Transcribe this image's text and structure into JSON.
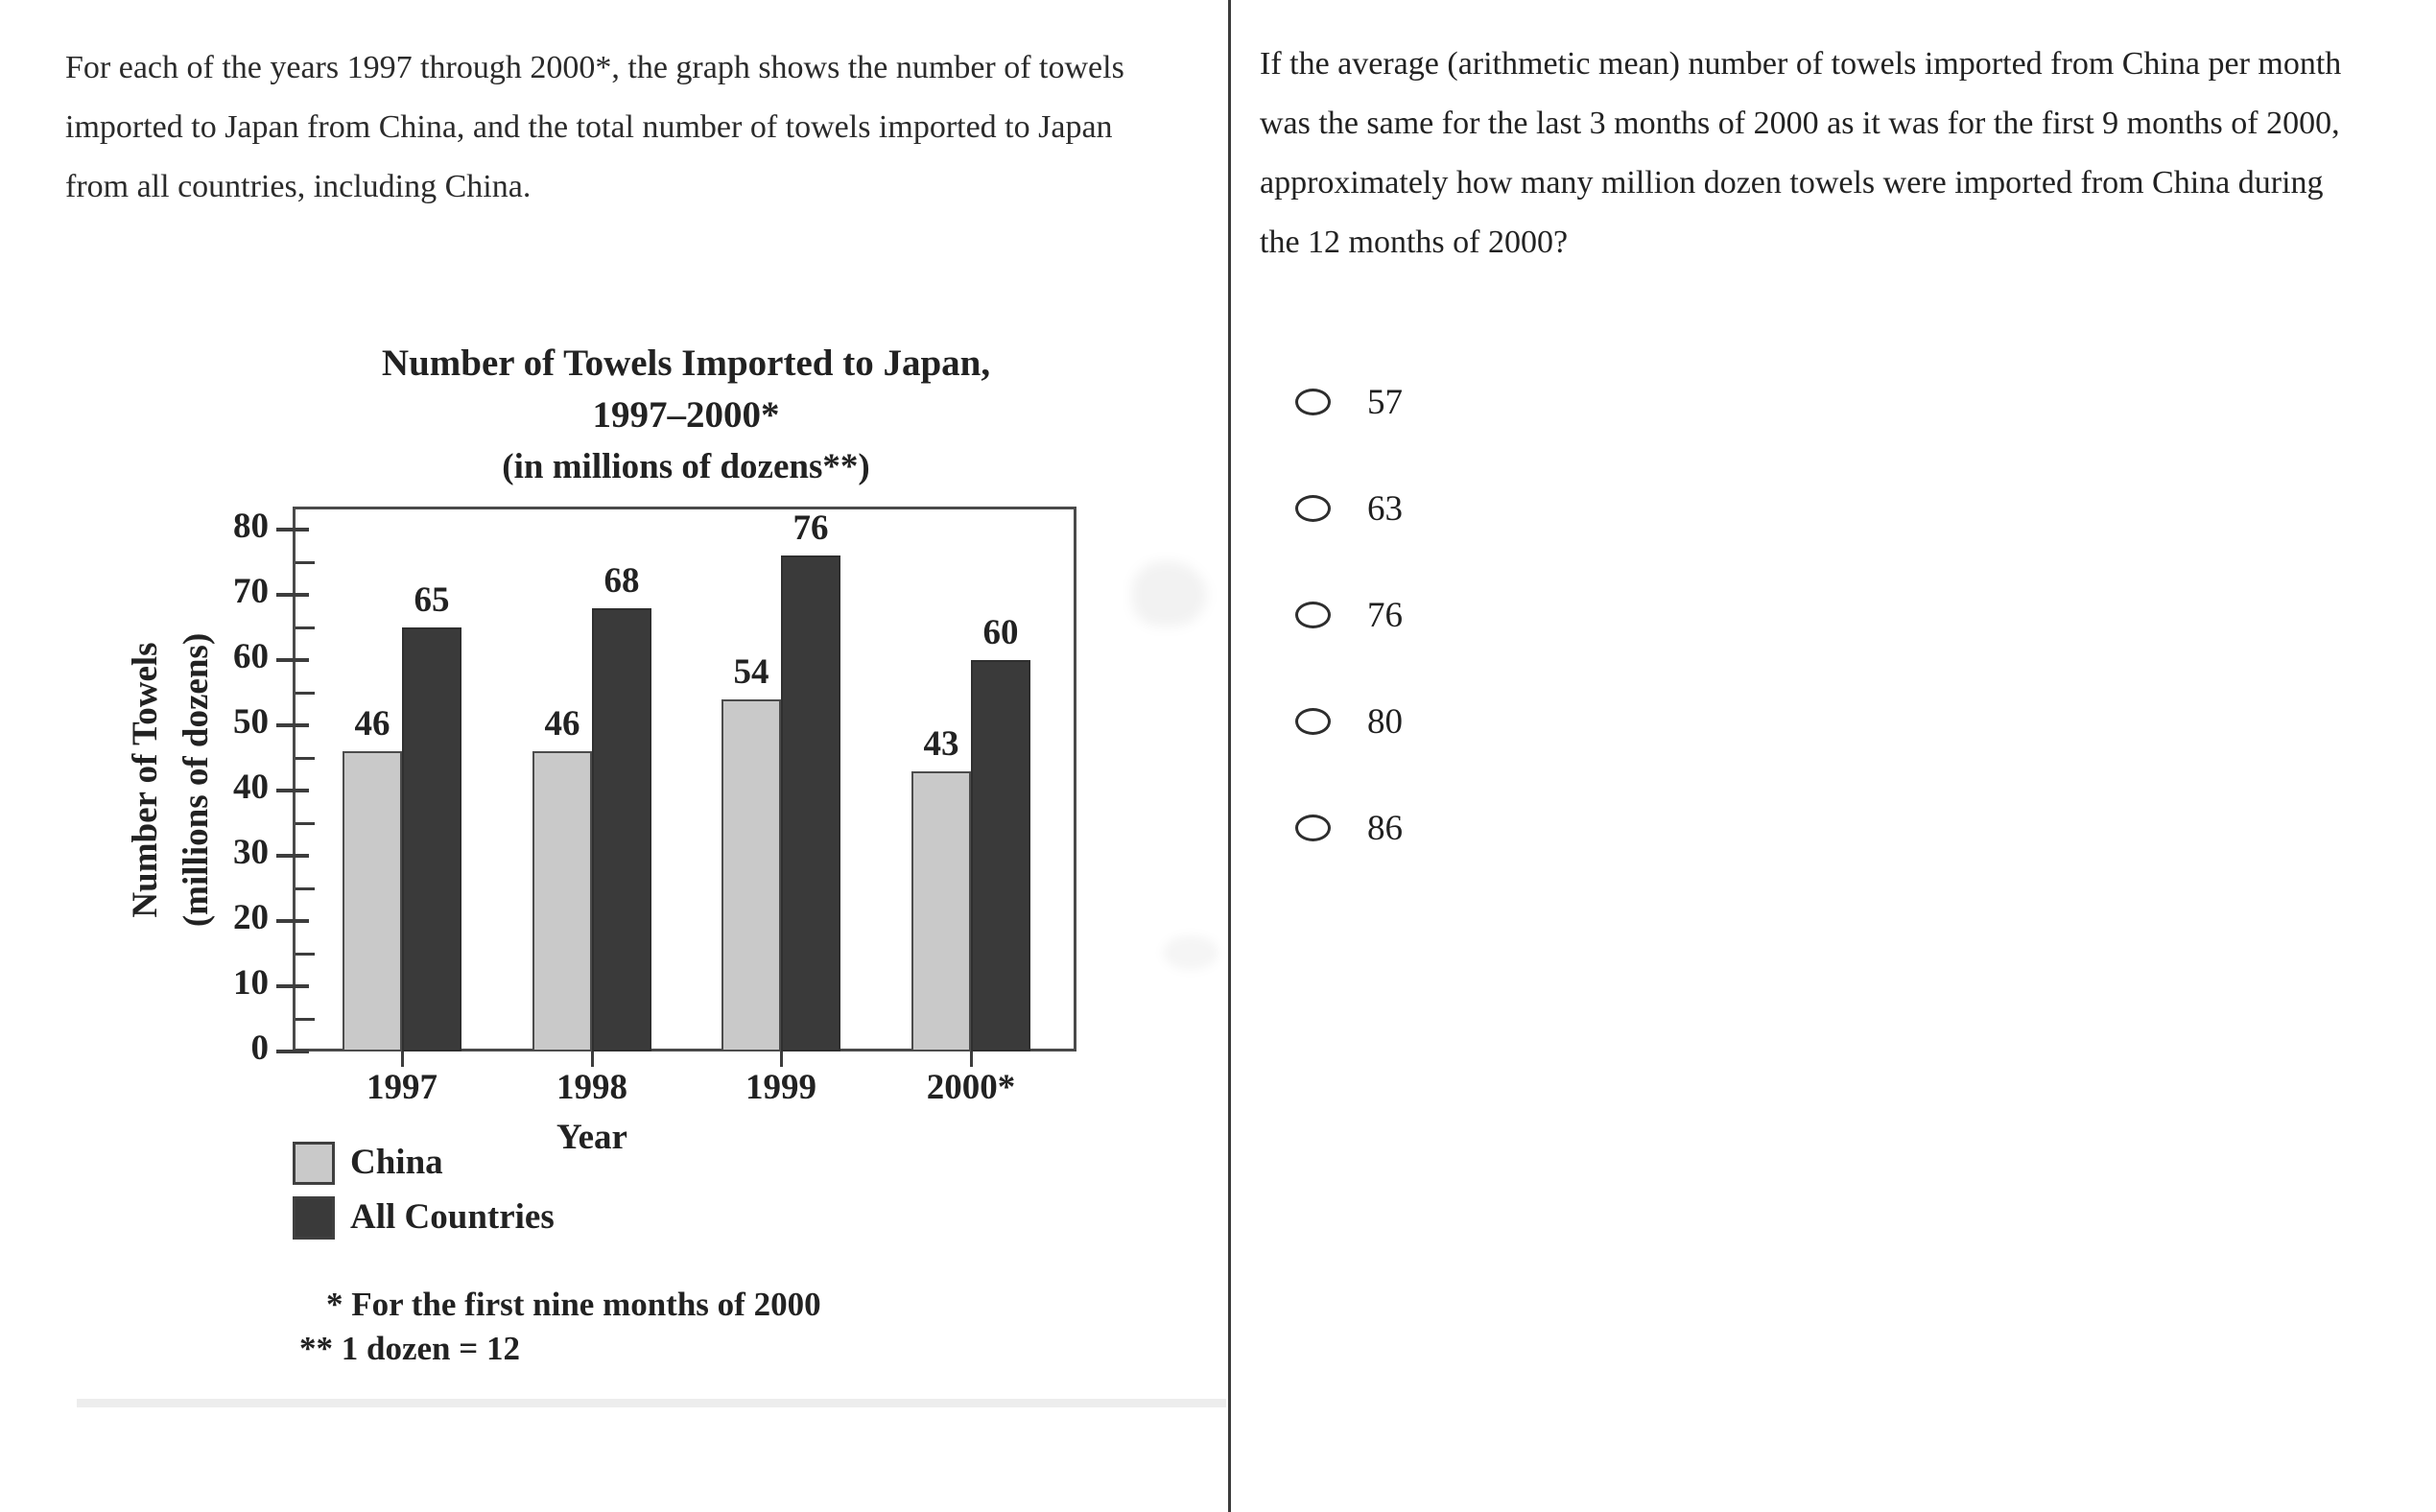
{
  "left_panel": {
    "intro_text": "For each of the years 1997 through 2000*, the graph shows the number of towels imported to Japan from China, and the total number of towels imported to Japan from all countries, including China."
  },
  "right_panel": {
    "question_text": "If the average (arithmetic mean) number of towels imported from China per month was the same for the last 3 months of 2000 as it was for the first 9 months of 2000, approximately how many million dozen towels were imported from China during the 12 months of 2000?",
    "options": [
      "57",
      "63",
      "76",
      "80",
      "86"
    ],
    "radio_state": "unselected"
  },
  "chart_data": {
    "type": "bar",
    "title_lines": [
      "Number of Towels Imported to Japan,",
      "1997–2000*",
      "(in millions of dozens**)"
    ],
    "ylabel_lines": [
      "Number of Towels",
      "(millions of dozens)"
    ],
    "xlabel": "Year",
    "categories": [
      "1997",
      "1998",
      "1999",
      "2000*"
    ],
    "series": [
      {
        "name": "China",
        "values": [
          46,
          46,
          54,
          43
        ]
      },
      {
        "name": "All Countries",
        "values": [
          65,
          68,
          76,
          60
        ]
      }
    ],
    "yticks": [
      0,
      10,
      20,
      30,
      40,
      50,
      60,
      70,
      80
    ],
    "ylim": [
      0,
      83
    ],
    "ytick_minor_interval": 5,
    "grid": "off",
    "legend_position": "below-left",
    "bar_labels_shown": true,
    "footnotes": [
      "* For the first nine months of 2000",
      "** 1 dozen = 12"
    ],
    "colors": {
      "china": "#c9c9c9",
      "all_countries": "#3a3a3a",
      "axis": "#3d3d3d"
    }
  }
}
